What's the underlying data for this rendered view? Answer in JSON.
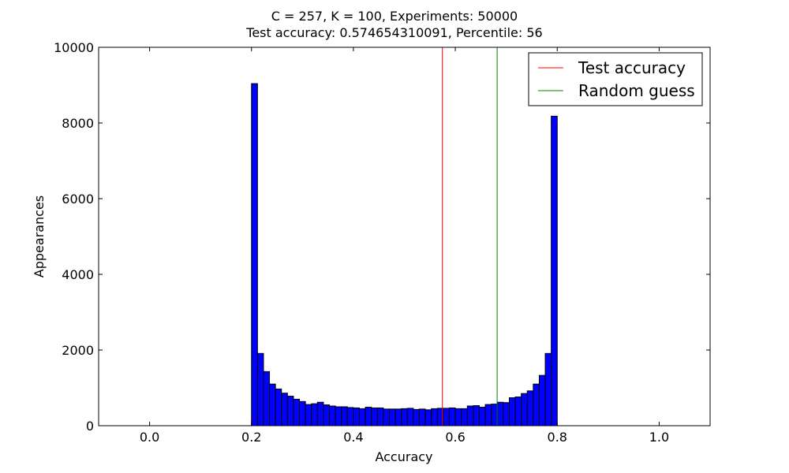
{
  "chart_data": {
    "type": "bar",
    "title_line1": "C = 257, K = 100, Experiments: 50000",
    "title_line2": "Test accuracy: 0.574654310091, Percentile: 56",
    "xlabel": "Accuracy",
    "ylabel": "Appearances",
    "xlim": [
      -0.1,
      1.1
    ],
    "ylim": [
      0,
      10000
    ],
    "xticks": [
      0.0,
      0.2,
      0.4,
      0.6,
      0.8,
      1.0
    ],
    "xtick_labels": [
      "0.0",
      "0.2",
      "0.4",
      "0.6",
      "0.8",
      "1.0"
    ],
    "yticks": [
      0,
      2000,
      4000,
      6000,
      8000,
      10000
    ],
    "ytick_labels": [
      "0",
      "2000",
      "4000",
      "6000",
      "8000",
      "10000"
    ],
    "bar_color": "#0000ff",
    "bin_range": [
      0.2,
      0.8
    ],
    "values": [
      9040,
      1910,
      1430,
      1100,
      970,
      860,
      780,
      700,
      640,
      560,
      580,
      620,
      550,
      520,
      500,
      500,
      480,
      470,
      450,
      490,
      470,
      470,
      440,
      440,
      440,
      450,
      460,
      430,
      440,
      420,
      450,
      460,
      460,
      470,
      450,
      450,
      520,
      530,
      490,
      560,
      570,
      620,
      610,
      740,
      760,
      850,
      920,
      1100,
      1330,
      1910,
      8180
    ],
    "lines": [
      {
        "name": "Test accuracy",
        "x": 0.574654310091,
        "color": "#ff0000"
      },
      {
        "name": "Random guess",
        "x": 0.6821,
        "color": "#008000"
      }
    ],
    "legend_position": "top-right",
    "grid": false
  }
}
